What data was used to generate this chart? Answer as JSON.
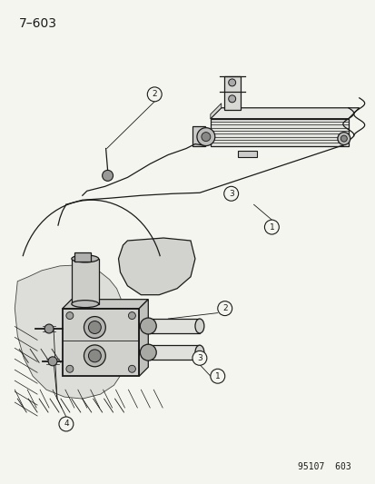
{
  "title": "7–603",
  "footer": "95107  603",
  "bg_color": "#f5f5f0",
  "line_color": "#1a1a1a",
  "title_fontsize": 10,
  "footer_fontsize": 7,
  "fig_width": 4.14,
  "fig_height": 5.33,
  "dpi": 100
}
